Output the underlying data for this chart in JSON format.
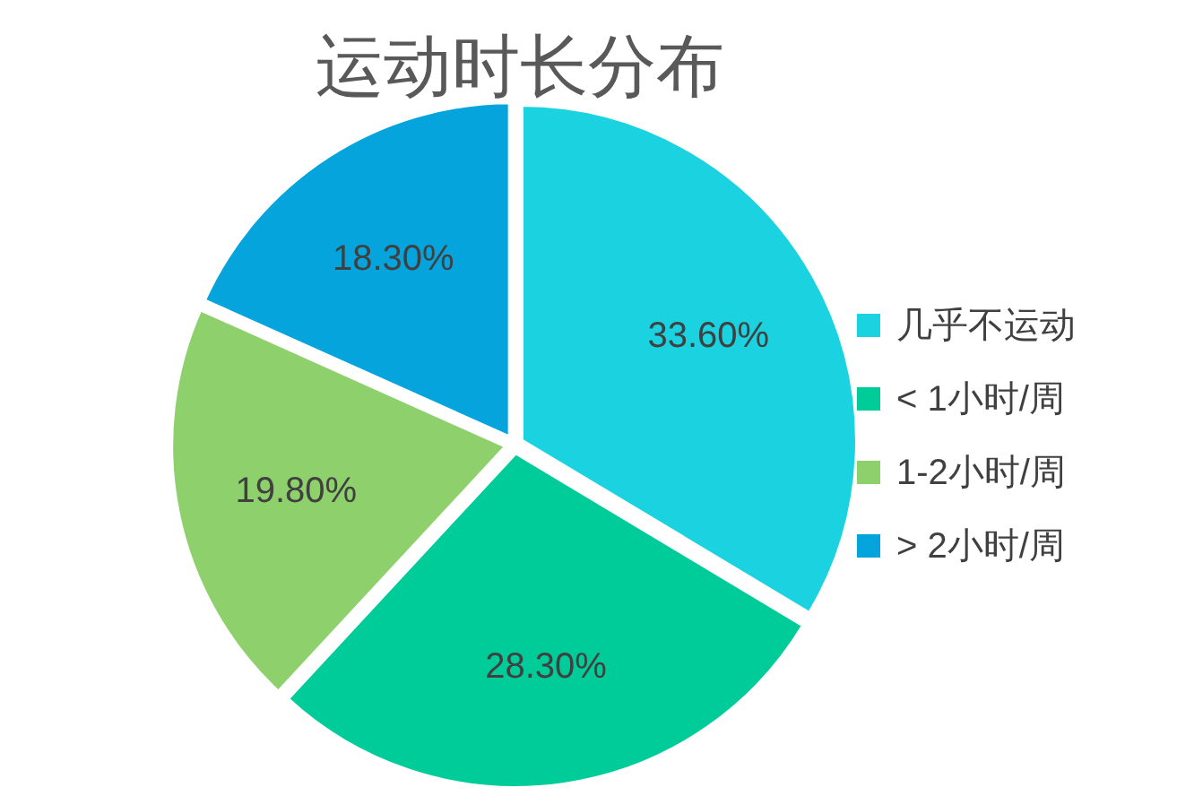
{
  "chart_data": {
    "type": "pie",
    "title": "运动时长分布",
    "categories": [
      "几乎不运动",
      "< 1小时/周",
      "1-2小时/周",
      "> 2小时/周"
    ],
    "values": [
      33.6,
      28.3,
      19.8,
      18.3
    ],
    "value_labels": [
      "33.60%",
      "28.30%",
      "19.80%",
      "18.30%"
    ],
    "colors": [
      "#1ad2e0",
      "#00cc9a",
      "#8ed16c",
      "#06a4dc"
    ],
    "legend": "right"
  }
}
